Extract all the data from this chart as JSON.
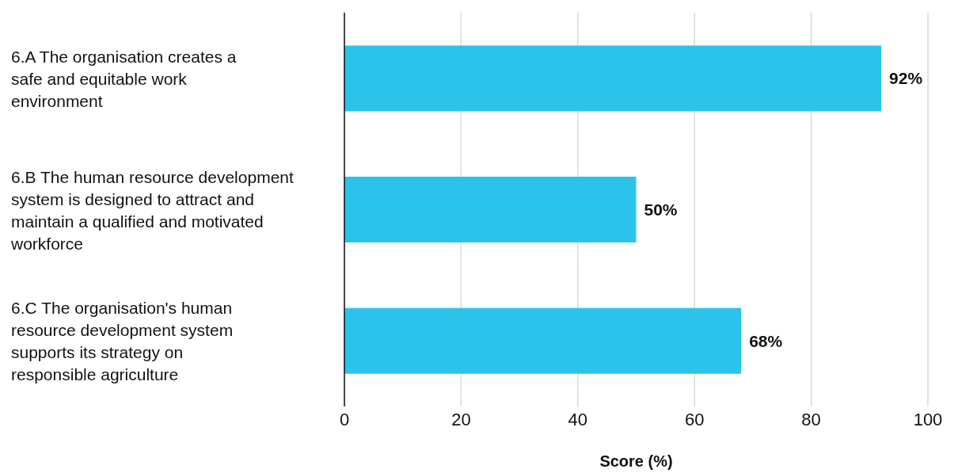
{
  "chart_data": {
    "type": "bar",
    "orientation": "horizontal",
    "xlabel": "Score (%)",
    "categories": [
      "6.A The organisation creates a safe and equitable work environment",
      "6.B The human resource development system is designed to attract and maintain a qualified and motivated workforce",
      "6.C The organisation's human resource development system supports its strategy on responsible agriculture"
    ],
    "values": [
      92,
      50,
      68
    ],
    "value_labels": [
      "92%",
      "50%",
      "68%"
    ],
    "color": "#2cc3ea",
    "xlim": [
      0,
      100
    ],
    "xticks": [
      0,
      20,
      40,
      60,
      80,
      100
    ],
    "grid": "x"
  }
}
